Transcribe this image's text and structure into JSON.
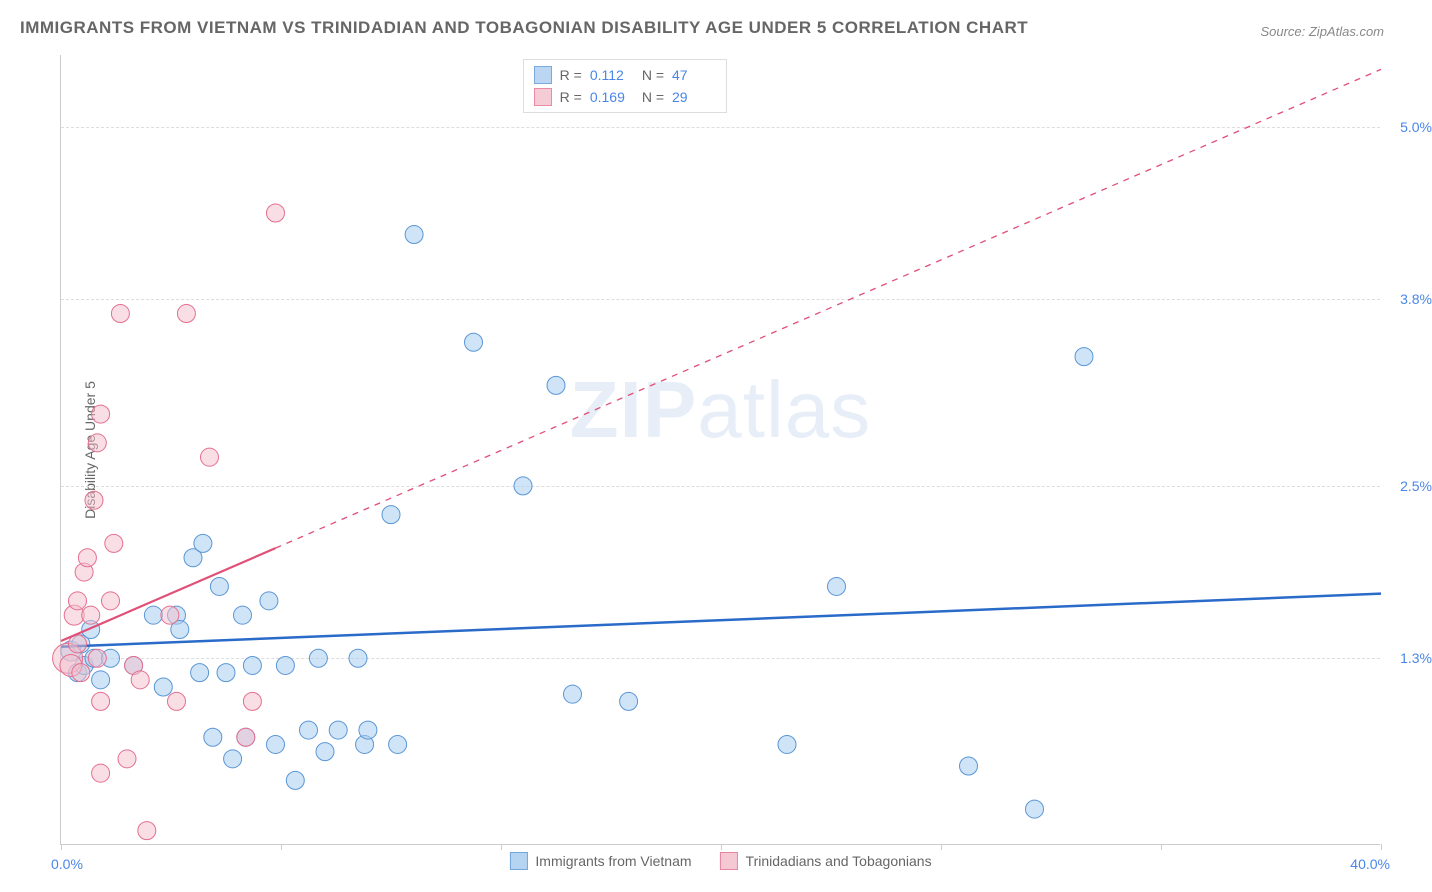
{
  "title": "IMMIGRANTS FROM VIETNAM VS TRINIDADIAN AND TOBAGONIAN DISABILITY AGE UNDER 5 CORRELATION CHART",
  "source": "Source: ZipAtlas.com",
  "watermark_a": "ZIP",
  "watermark_b": "atlas",
  "chart": {
    "type": "scatter",
    "y_axis_title": "Disability Age Under 5",
    "xlim": [
      0.0,
      40.0
    ],
    "ylim": [
      0.0,
      5.5
    ],
    "x_min_label": "0.0%",
    "x_max_label": "40.0%",
    "y_ticks": [
      {
        "value": 1.3,
        "label": "1.3%"
      },
      {
        "value": 2.5,
        "label": "2.5%"
      },
      {
        "value": 3.8,
        "label": "3.8%"
      },
      {
        "value": 5.0,
        "label": "5.0%"
      }
    ],
    "x_tick_positions": [
      0,
      6.67,
      13.33,
      20,
      26.67,
      33.33,
      40
    ],
    "background_color": "#ffffff",
    "grid_color": "#dddddd",
    "series": [
      {
        "name": "Immigrants from Vietnam",
        "fill": "#a9cdf0",
        "stroke": "#5a96d6",
        "fill_opacity": 0.55,
        "marker_r": 9,
        "trend_color": "#2a6ac9",
        "trend_width": 2.5,
        "trend": {
          "x1": 0,
          "y1": 1.38,
          "x2": 40,
          "y2": 1.75,
          "dash_after_x": 40
        },
        "points": [
          {
            "x": 0.3,
            "y": 1.35,
            "r": 10
          },
          {
            "x": 0.5,
            "y": 1.2,
            "r": 9
          },
          {
            "x": 0.6,
            "y": 1.4,
            "r": 9
          },
          {
            "x": 0.7,
            "y": 1.25,
            "r": 9
          },
          {
            "x": 0.9,
            "y": 1.5,
            "r": 9
          },
          {
            "x": 1.0,
            "y": 1.3,
            "r": 9
          },
          {
            "x": 1.2,
            "y": 1.15,
            "r": 9
          },
          {
            "x": 1.5,
            "y": 1.3,
            "r": 9
          },
          {
            "x": 3.5,
            "y": 1.6,
            "r": 9
          },
          {
            "x": 2.2,
            "y": 1.25,
            "r": 9
          },
          {
            "x": 2.8,
            "y": 1.6,
            "r": 9
          },
          {
            "x": 3.1,
            "y": 1.1,
            "r": 9
          },
          {
            "x": 3.6,
            "y": 1.5,
            "r": 9
          },
          {
            "x": 4.0,
            "y": 2.0,
            "r": 9
          },
          {
            "x": 4.2,
            "y": 1.2,
            "r": 9
          },
          {
            "x": 4.3,
            "y": 2.1,
            "r": 9
          },
          {
            "x": 4.6,
            "y": 0.75,
            "r": 9
          },
          {
            "x": 4.8,
            "y": 1.8,
            "r": 9
          },
          {
            "x": 5.0,
            "y": 1.2,
            "r": 9
          },
          {
            "x": 5.2,
            "y": 0.6,
            "r": 9
          },
          {
            "x": 5.5,
            "y": 1.6,
            "r": 9
          },
          {
            "x": 5.6,
            "y": 0.75,
            "r": 9
          },
          {
            "x": 5.8,
            "y": 1.25,
            "r": 9
          },
          {
            "x": 6.3,
            "y": 1.7,
            "r": 9
          },
          {
            "x": 6.5,
            "y": 0.7,
            "r": 9
          },
          {
            "x": 6.8,
            "y": 1.25,
            "r": 9
          },
          {
            "x": 7.1,
            "y": 0.45,
            "r": 9
          },
          {
            "x": 7.5,
            "y": 0.8,
            "r": 9
          },
          {
            "x": 7.8,
            "y": 1.3,
            "r": 9
          },
          {
            "x": 8.0,
            "y": 0.65,
            "r": 9
          },
          {
            "x": 8.4,
            "y": 0.8,
            "r": 9
          },
          {
            "x": 9.0,
            "y": 1.3,
            "r": 9
          },
          {
            "x": 9.2,
            "y": 0.7,
            "r": 9
          },
          {
            "x": 9.3,
            "y": 0.8,
            "r": 9
          },
          {
            "x": 10.0,
            "y": 2.3,
            "r": 9
          },
          {
            "x": 10.2,
            "y": 0.7,
            "r": 9
          },
          {
            "x": 10.7,
            "y": 4.25,
            "r": 9
          },
          {
            "x": 12.5,
            "y": 3.5,
            "r": 9
          },
          {
            "x": 14.0,
            "y": 2.5,
            "r": 9
          },
          {
            "x": 15.0,
            "y": 3.2,
            "r": 9
          },
          {
            "x": 15.5,
            "y": 1.05,
            "r": 9
          },
          {
            "x": 17.2,
            "y": 1.0,
            "r": 9
          },
          {
            "x": 22.0,
            "y": 0.7,
            "r": 9
          },
          {
            "x": 23.5,
            "y": 1.8,
            "r": 9
          },
          {
            "x": 27.5,
            "y": 0.55,
            "r": 9
          },
          {
            "x": 29.5,
            "y": 0.25,
            "r": 9
          },
          {
            "x": 31.0,
            "y": 3.4,
            "r": 9
          }
        ]
      },
      {
        "name": "Trinidadians and Tobagonians",
        "fill": "#f3c0cc",
        "stroke": "#e46f8f",
        "fill_opacity": 0.5,
        "marker_r": 9,
        "trend_color": "#e15078",
        "trend_width": 2.2,
        "trend": {
          "x1": 0,
          "y1": 1.42,
          "x2": 40,
          "y2": 5.4,
          "dash_after_x": 6.5
        },
        "points": [
          {
            "x": 0.2,
            "y": 1.3,
            "r": 15
          },
          {
            "x": 0.3,
            "y": 1.25,
            "r": 11
          },
          {
            "x": 0.4,
            "y": 1.6,
            "r": 10
          },
          {
            "x": 0.5,
            "y": 1.4,
            "r": 9
          },
          {
            "x": 0.5,
            "y": 1.7,
            "r": 9
          },
          {
            "x": 0.6,
            "y": 1.2,
            "r": 9
          },
          {
            "x": 0.7,
            "y": 1.9,
            "r": 9
          },
          {
            "x": 0.8,
            "y": 2.0,
            "r": 9
          },
          {
            "x": 0.9,
            "y": 1.6,
            "r": 9
          },
          {
            "x": 1.0,
            "y": 2.4,
            "r": 9
          },
          {
            "x": 1.1,
            "y": 2.8,
            "r": 9
          },
          {
            "x": 1.1,
            "y": 1.3,
            "r": 9
          },
          {
            "x": 1.2,
            "y": 1.0,
            "r": 9
          },
          {
            "x": 1.2,
            "y": 3.0,
            "r": 9
          },
          {
            "x": 1.2,
            "y": 0.5,
            "r": 9
          },
          {
            "x": 1.5,
            "y": 1.7,
            "r": 9
          },
          {
            "x": 1.6,
            "y": 2.1,
            "r": 9
          },
          {
            "x": 1.8,
            "y": 3.7,
            "r": 9
          },
          {
            "x": 2.0,
            "y": 0.6,
            "r": 9
          },
          {
            "x": 2.2,
            "y": 1.25,
            "r": 9
          },
          {
            "x": 2.4,
            "y": 1.15,
            "r": 9
          },
          {
            "x": 3.3,
            "y": 1.6,
            "r": 9
          },
          {
            "x": 3.5,
            "y": 1.0,
            "r": 9
          },
          {
            "x": 3.8,
            "y": 3.7,
            "r": 9
          },
          {
            "x": 4.5,
            "y": 2.7,
            "r": 9
          },
          {
            "x": 5.8,
            "y": 1.0,
            "r": 9
          },
          {
            "x": 5.6,
            "y": 0.75,
            "r": 9
          },
          {
            "x": 6.5,
            "y": 4.4,
            "r": 9
          },
          {
            "x": 2.6,
            "y": 0.1,
            "r": 9
          }
        ]
      }
    ],
    "stats": [
      {
        "series_index": 0,
        "R": "0.112",
        "N": "47"
      },
      {
        "series_index": 1,
        "R": "0.169",
        "N": "29"
      }
    ],
    "stat_labels": {
      "R": "R  =",
      "N": "N  ="
    }
  }
}
